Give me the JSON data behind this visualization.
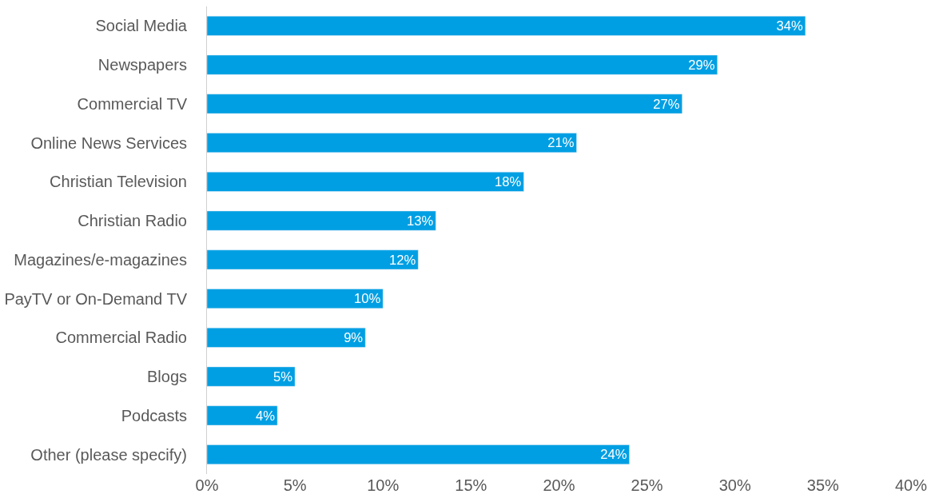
{
  "chart_data": {
    "type": "bar",
    "orientation": "horizontal",
    "categories": [
      "Social Media",
      "Newspapers",
      "Commercial TV",
      "Online News Services",
      "Christian Television",
      "Christian Radio",
      "Magazines/e-magazines",
      "PayTV or On-Demand TV",
      "Commercial Radio",
      "Blogs",
      "Podcasts",
      "Other (please specify)"
    ],
    "values": [
      34,
      29,
      27,
      21,
      18,
      13,
      12,
      10,
      9,
      5,
      4,
      24
    ],
    "value_labels": [
      "34%",
      "29%",
      "27%",
      "21%",
      "18%",
      "13%",
      "12%",
      "10%",
      "9%",
      "5%",
      "4%",
      "24%"
    ],
    "color": "#009fe3",
    "xlim": [
      0,
      40
    ],
    "xticks": [
      {
        "value": 0,
        "label": "0%"
      },
      {
        "value": 5,
        "label": "5%"
      },
      {
        "value": 10,
        "label": "10%"
      },
      {
        "value": 15,
        "label": "15%"
      },
      {
        "value": 20,
        "label": "20%"
      },
      {
        "value": 25,
        "label": "25%"
      },
      {
        "value": 30,
        "label": "30%"
      },
      {
        "value": 35,
        "label": "35%"
      },
      {
        "value": 40,
        "label": "40%"
      }
    ],
    "legend": false
  }
}
